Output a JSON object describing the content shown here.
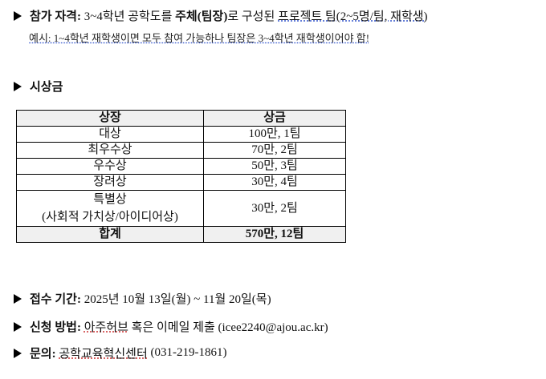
{
  "eligibility": {
    "label": "참가 자격:",
    "text1": " 3~4학년 공학도를 ",
    "bold": "주체(팀장)",
    "text2": "로 구성된 ",
    "underlined": "프로젝트 팀(2~5명/팀, 재학생)",
    "note": "예시: 1~4학년 재학생이면 모두 참여 가능하나 팀장은 3~4학년 재학생이어야 함!"
  },
  "prize": {
    "label": "시상금"
  },
  "table": {
    "headers": [
      "상장",
      "상금"
    ],
    "rows": [
      {
        "award": "대상",
        "amount": "100만, 1팀"
      },
      {
        "award": "최우수상",
        "amount": "70만, 2팀"
      },
      {
        "award": "우수상",
        "amount": "50만, 3팀"
      },
      {
        "award": "장려상",
        "amount": "30만, 4팀"
      },
      {
        "award": "특별상",
        "award_sub": "(사회적 가치상/아이디어상)",
        "amount": "30만, 2팀"
      }
    ],
    "total": {
      "award": "합계",
      "amount": "570만, 12팀"
    }
  },
  "period": {
    "label": "접수 기간:",
    "text": " 2025년 10월 13일(월) ~ 11월 20일(목)"
  },
  "method": {
    "label": "신청 방법:",
    "link": "아주허브",
    "text": " 혹은 이메일 제출 (icee2240@ajou.ac.kr)"
  },
  "contact": {
    "label": "문의:",
    "link": "공학교육혁신센터",
    "text": " (031-219-1861)"
  }
}
